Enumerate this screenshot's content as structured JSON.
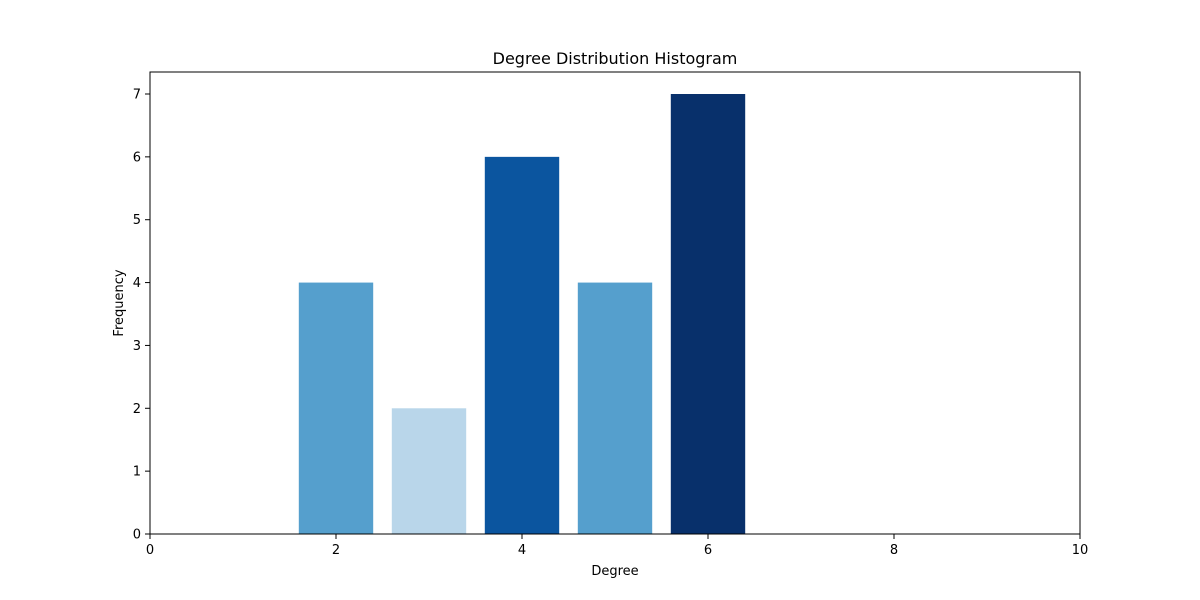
{
  "chart_data": {
    "type": "bar",
    "title": "Degree Distribution Histogram",
    "xlabel": "Degree",
    "ylabel": "Frequency",
    "xlim": [
      0,
      10
    ],
    "ylim": [
      0,
      7.35
    ],
    "xticks": [
      "0",
      "2",
      "4",
      "6",
      "8",
      "10"
    ],
    "yticks": [
      "0",
      "1",
      "2",
      "3",
      "4",
      "5",
      "6",
      "7"
    ],
    "grid": false,
    "legend": "none",
    "bar_width": 0.8,
    "bars": [
      {
        "x": 2,
        "value": 4,
        "color": "#559fcd"
      },
      {
        "x": 3,
        "value": 2,
        "color": "#b9d6ea"
      },
      {
        "x": 4,
        "value": 6,
        "color": "#0b559f"
      },
      {
        "x": 5,
        "value": 4,
        "color": "#559fcd"
      },
      {
        "x": 6,
        "value": 7,
        "color": "#08306b"
      }
    ]
  }
}
